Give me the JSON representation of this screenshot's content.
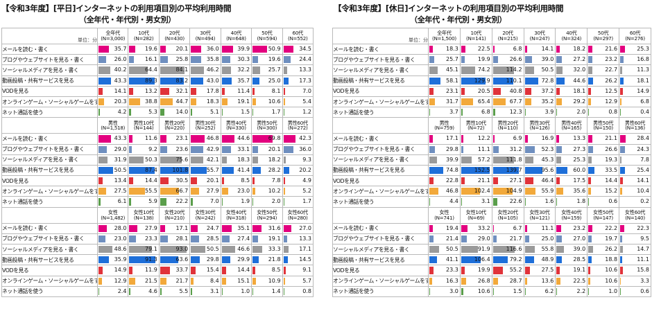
{
  "colors": {
    "categories": [
      "#e3007f",
      "#6f8fbf",
      "#9a9a9a",
      "#1e6fd9",
      "#e0333a",
      "#f2a93b",
      "#5a9e4b",
      "#aaaaaa"
    ]
  },
  "chart_data": [
    {
      "type": "table",
      "title": "【令和3年度】[平日]インターネットの利用項目別の平均利用時間",
      "subtitle": "（全年代・年代別・男女別）",
      "unit_label": "単位：分",
      "scale_max": 100,
      "categories": [
        "メールを読む・書く",
        "ブログやウェブサイトを見る・書く",
        "ソーシャルメディアを見る・書く",
        "動画投稿・共有サービスを見る",
        "VODを見る",
        "オンラインゲーム・ソーシャルゲームをする",
        "ネット通話を使う"
      ],
      "groups": [
        {
          "columns": [
            [
              "全年代",
              "(N=3,000)"
            ],
            [
              "10代",
              "(N=282)"
            ],
            [
              "20代",
              "(N=430)"
            ],
            [
              "30代",
              "(N=494)"
            ],
            [
              "40代",
              "(N=648)"
            ],
            [
              "50代",
              "(N=594)"
            ],
            [
              "60代",
              "(N=552)"
            ]
          ],
          "rows": [
            [
              "35.7",
              "19.6",
              "20.1",
              "36.0",
              "39.9",
              "50.9",
              "34.5"
            ],
            [
              "26.0",
              "16.1",
              "25.8",
              "35.8",
              "30.3",
              "19.6",
              "24.4"
            ],
            [
              "40.2",
              "64.4",
              "84.1",
              "46.2",
              "32.2",
              "25.7",
              "13.3"
            ],
            [
              "43.3",
              "89.3",
              "83.2",
              "43.0",
              "35.7",
              "25.0",
              "17.3"
            ],
            [
              "14.1",
              "13.2",
              "32.1",
              "17.8",
              "11.4",
              "8.1",
              "7.0"
            ],
            [
              "20.3",
              "38.8",
              "44.7",
              "18.3",
              "19.1",
              "10.6",
              "5.4"
            ],
            [
              "4.2",
              "5.3",
              "14.0",
              "5.1",
              "1.5",
              "1.7",
              "1.2"
            ]
          ]
        },
        {
          "columns": [
            [
              "男性",
              "(N=1,518)"
            ],
            [
              "男性10代",
              "(N=144)"
            ],
            [
              "男性20代",
              "(N=220)"
            ],
            [
              "男性30代",
              "(N=252)"
            ],
            [
              "男性40代",
              "(N=330)"
            ],
            [
              "男性50代",
              "(N=300)"
            ],
            [
              "男性60代",
              "(N=272)"
            ]
          ],
          "rows": [
            [
              "43.3",
              "11.6",
              "23.1",
              "46.8",
              "44.6",
              "69.8",
              "42.3"
            ],
            [
              "29.0",
              "9.2",
              "23.6",
              "42.9",
              "33.1",
              "20.1",
              "36.0"
            ],
            [
              "31.9",
              "50.3",
              "75.6",
              "42.1",
              "18.3",
              "18.2",
              "9.3"
            ],
            [
              "50.5",
              "87.4",
              "101.8",
              "55.7",
              "41.4",
              "28.2",
              "20.2"
            ],
            [
              "13.4",
              "14.4",
              "30.5",
              "20.1",
              "8.5",
              "7.8",
              "4.9"
            ],
            [
              "27.5",
              "55.5",
              "66.7",
              "27.9",
              "23.0",
              "10.2",
              "5.2"
            ],
            [
              "6.1",
              "5.9",
              "22.2",
              "7.0",
              "1.9",
              "2.0",
              "1.7"
            ]
          ]
        },
        {
          "columns": [
            [
              "女性",
              "(N=1,482)"
            ],
            [
              "女性10代",
              "(N=138)"
            ],
            [
              "女性20代",
              "(N=210)"
            ],
            [
              "女性30代",
              "(N=242)"
            ],
            [
              "女性40代",
              "(N=318)"
            ],
            [
              "女性50代",
              "(N=294)"
            ],
            [
              "女性60代",
              "(N=280)"
            ]
          ],
          "rows": [
            [
              "28.0",
              "27.9",
              "17.1",
              "24.7",
              "35.1",
              "31.6",
              "27.0"
            ],
            [
              "23.0",
              "23.3",
              "28.1",
              "28.5",
              "27.4",
              "19.1",
              "13.3"
            ],
            [
              "48.6",
              "79.1",
              "93.0",
              "50.5",
              "46.6",
              "33.3",
              "17.1"
            ],
            [
              "35.9",
              "91.3",
              "63.6",
              "29.8",
              "29.9",
              "21.8",
              "14.5"
            ],
            [
              "14.9",
              "11.9",
              "33.7",
              "15.4",
              "14.4",
              "8.5",
              "9.1"
            ],
            [
              "12.9",
              "21.5",
              "21.7",
              "8.4",
              "15.1",
              "10.9",
              "5.7"
            ],
            [
              "2.4",
              "4.6",
              "5.5",
              "3.1",
              "1.0",
              "1.4",
              "0.8"
            ]
          ]
        }
      ]
    },
    {
      "type": "table",
      "title": "【令和3年度】[休日]インターネットの利用項目別の平均利用時間",
      "subtitle": "（全年代・年代別・男女別）",
      "unit_label": "単位：分",
      "scale_max": 160,
      "categories": [
        "メールを読む・書く",
        "ブログやウェブサイトを見る・書く",
        "ソーシャルメディアを見る・書く",
        "動画投稿・共有サービスを見る",
        "VODを見る",
        "オンラインゲーム・ソーシャルゲームをする",
        "ネット通話を使う"
      ],
      "groups": [
        {
          "columns": [
            [
              "全年代",
              "(N=1,500)"
            ],
            [
              "10代",
              "(N=141)"
            ],
            [
              "20代",
              "(N=215)"
            ],
            [
              "30代",
              "(N=247)"
            ],
            [
              "40代",
              "(N=324)"
            ],
            [
              "50代",
              "(N=297)"
            ],
            [
              "60代",
              "(N=276)"
            ]
          ],
          "rows": [
            [
              "18.3",
              "22.5",
              "6.8",
              "14.1",
              "18.2",
              "21.6",
              "25.3"
            ],
            [
              "25.7",
              "19.9",
              "26.6",
              "39.0",
              "27.2",
              "23.2",
              "16.8"
            ],
            [
              "45.1",
              "74.2",
              "114.2",
              "50.5",
              "32.0",
              "22.7",
              "11.3"
            ],
            [
              "58.1",
              "129.9",
              "110.1",
              "72.8",
              "44.6",
              "26.2",
              "18.1"
            ],
            [
              "23.1",
              "20.5",
              "40.8",
              "37.2",
              "18.1",
              "12.5",
              "14.9"
            ],
            [
              "31.7",
              "65.4",
              "67.7",
              "35.2",
              "29.2",
              "12.9",
              "6.8"
            ],
            [
              "3.7",
              "6.8",
              "12.3",
              "3.9",
              "2.0",
              "0.8",
              "0.4"
            ]
          ]
        },
        {
          "columns": [
            [
              "男性",
              "(N=759)"
            ],
            [
              "男性10代",
              "(N=72)"
            ],
            [
              "男性20代",
              "(N=110)"
            ],
            [
              "男性30代",
              "(N=126)"
            ],
            [
              "男性40代",
              "(N=165)"
            ],
            [
              "男性50代",
              "(N=150)"
            ],
            [
              "男性60代",
              "(N=136)"
            ]
          ],
          "rows": [
            [
              "17.1",
              "12.2",
              "6.9",
              "16.9",
              "13.3",
              "21.1",
              "28.4"
            ],
            [
              "29.8",
              "11.1",
              "31.2",
              "52.3",
              "27.3",
              "26.6",
              "24.3"
            ],
            [
              "39.9",
              "57.2",
              "111.8",
              "45.3",
              "25.3",
              "19.3",
              "7.8"
            ],
            [
              "74.8",
              "152.5",
              "139.7",
              "95.6",
              "60.0",
              "33.5",
              "25.4"
            ],
            [
              "22.8",
              "21.1",
              "27.1",
              "46.4",
              "17.5",
              "14.4",
              "14.1"
            ],
            [
              "46.8",
              "102.4",
              "104.9",
              "55.9",
              "35.6",
              "15.2",
              "10.4"
            ],
            [
              "4.4",
              "3.1",
              "22.6",
              "1.6",
              "1.8",
              "0.6",
              "0.2"
            ]
          ]
        },
        {
          "columns": [
            [
              "女性",
              "(N=741)"
            ],
            [
              "女性10代",
              "(N=69)"
            ],
            [
              "女性20代",
              "(N=105)"
            ],
            [
              "女性30代",
              "(N=121)"
            ],
            [
              "女性40代",
              "(N=159)"
            ],
            [
              "女性50代",
              "(N=147)"
            ],
            [
              "女性60代",
              "(N=140)"
            ]
          ],
          "rows": [
            [
              "19.4",
              "33.2",
              "6.7",
              "11.1",
              "23.2",
              "22.2",
              "22.3"
            ],
            [
              "21.4",
              "29.0",
              "21.7",
              "25.0",
              "27.0",
              "19.7",
              "9.5"
            ],
            [
              "50.5",
              "91.9",
              "116.6",
              "55.8",
              "39.0",
              "26.2",
              "14.7"
            ],
            [
              "41.1",
              "106.4",
              "79.2",
              "48.9",
              "28.5",
              "18.8",
              "11.1"
            ],
            [
              "23.3",
              "19.9",
              "55.2",
              "27.5",
              "19.1",
              "10.6",
              "15.8"
            ],
            [
              "16.3",
              "26.8",
              "28.7",
              "13.6",
              "22.5",
              "10.6",
              "3.3"
            ],
            [
              "3.0",
              "10.6",
              "1.5",
              "6.2",
              "2.2",
              "1.0",
              "0.6"
            ]
          ]
        }
      ]
    }
  ]
}
